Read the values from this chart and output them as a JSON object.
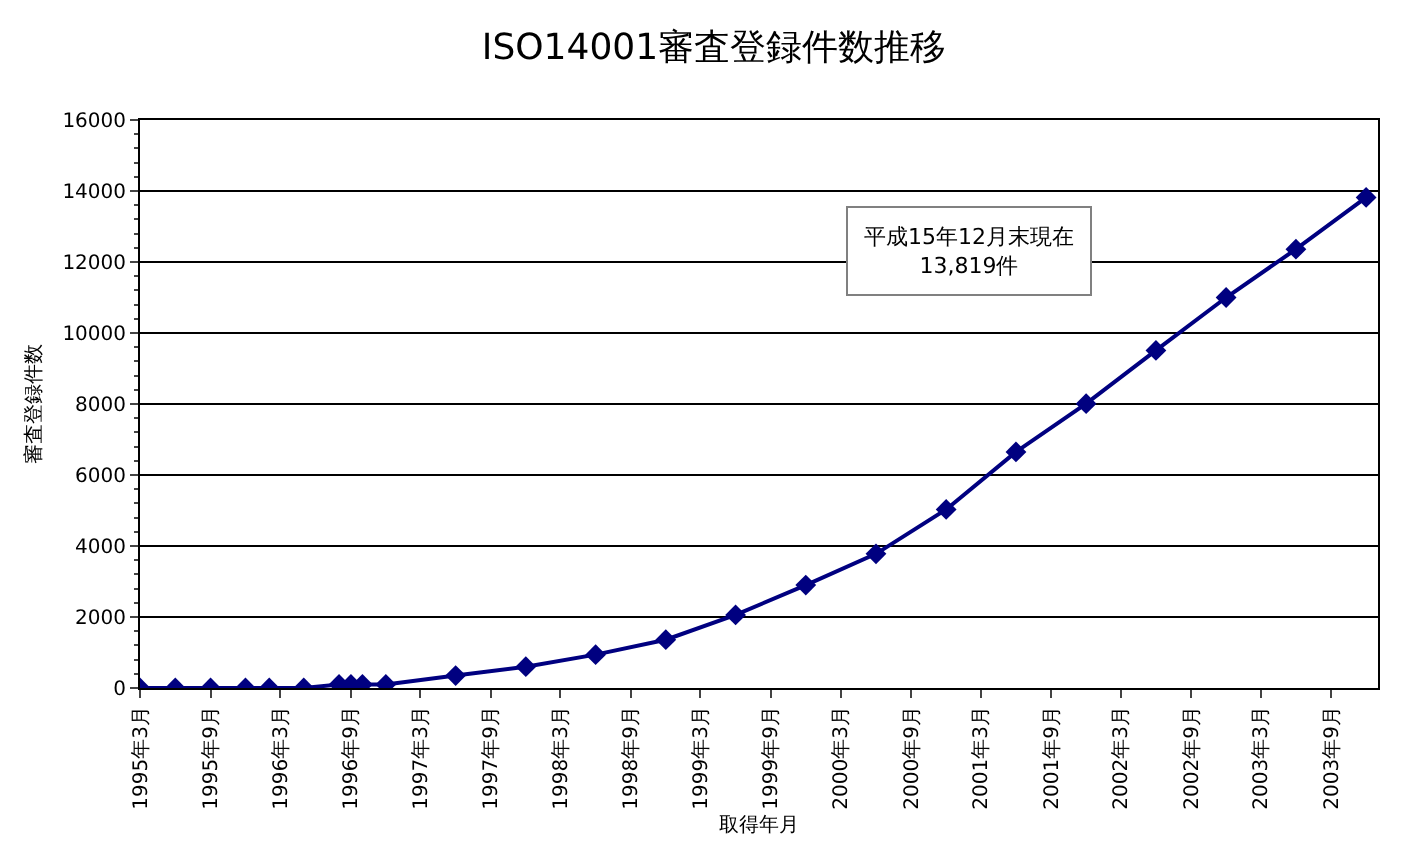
{
  "chart_data": {
    "type": "line",
    "title": "ISO14001審査登録件数推移",
    "xlabel": "取得年月",
    "ylabel": "審査登録件数",
    "x": [
      "1995-03",
      "1995-06",
      "1995-09",
      "1995-12",
      "1996-02",
      "1996-05",
      "1996-08",
      "1996-09",
      "1996-10",
      "1996-12",
      "1997-06",
      "1997-12",
      "1998-06",
      "1998-12",
      "1999-06",
      "1999-12",
      "2000-06",
      "2000-12",
      "2001-06",
      "2001-12",
      "2002-06",
      "2002-12",
      "2003-06",
      "2003-12"
    ],
    "series": [
      {
        "color": "#000080",
        "values": [
          0,
          0,
          0,
          0,
          0,
          0,
          100,
          100,
          100,
          100,
          350,
          600,
          940,
          1360,
          2060,
          2900,
          3780,
          5030,
          6650,
          8010,
          9510,
          11000,
          12360,
          13819
        ]
      }
    ],
    "xlim": [
      "1995-03",
      "2004-01"
    ],
    "xticks": [
      {
        "value": "1995-03",
        "label": "1995年3月"
      },
      {
        "value": "1995-09",
        "label": "1995年9月"
      },
      {
        "value": "1996-03",
        "label": "1996年3月"
      },
      {
        "value": "1996-09",
        "label": "1996年9月"
      },
      {
        "value": "1997-03",
        "label": "1997年3月"
      },
      {
        "value": "1997-09",
        "label": "1997年9月"
      },
      {
        "value": "1998-03",
        "label": "1998年3月"
      },
      {
        "value": "1998-09",
        "label": "1998年9月"
      },
      {
        "value": "1999-03",
        "label": "1999年3月"
      },
      {
        "value": "1999-09",
        "label": "1999年9月"
      },
      {
        "value": "2000-03",
        "label": "2000年3月"
      },
      {
        "value": "2000-09",
        "label": "2000年9月"
      },
      {
        "value": "2001-03",
        "label": "2001年3月"
      },
      {
        "value": "2001-09",
        "label": "2001年9月"
      },
      {
        "value": "2002-03",
        "label": "2002年3月"
      },
      {
        "value": "2002-09",
        "label": "2002年9月"
      },
      {
        "value": "2003-03",
        "label": "2003年3月"
      },
      {
        "value": "2003-09",
        "label": "2003年9月"
      }
    ],
    "ylim": [
      0,
      16000
    ],
    "yticks": [
      0,
      2000,
      4000,
      6000,
      8000,
      10000,
      12000,
      14000,
      16000
    ],
    "grid": "y",
    "marker": "diamond",
    "line_style": "solid",
    "annotations": [
      "平成15年12月末現在\n13,819件"
    ]
  }
}
